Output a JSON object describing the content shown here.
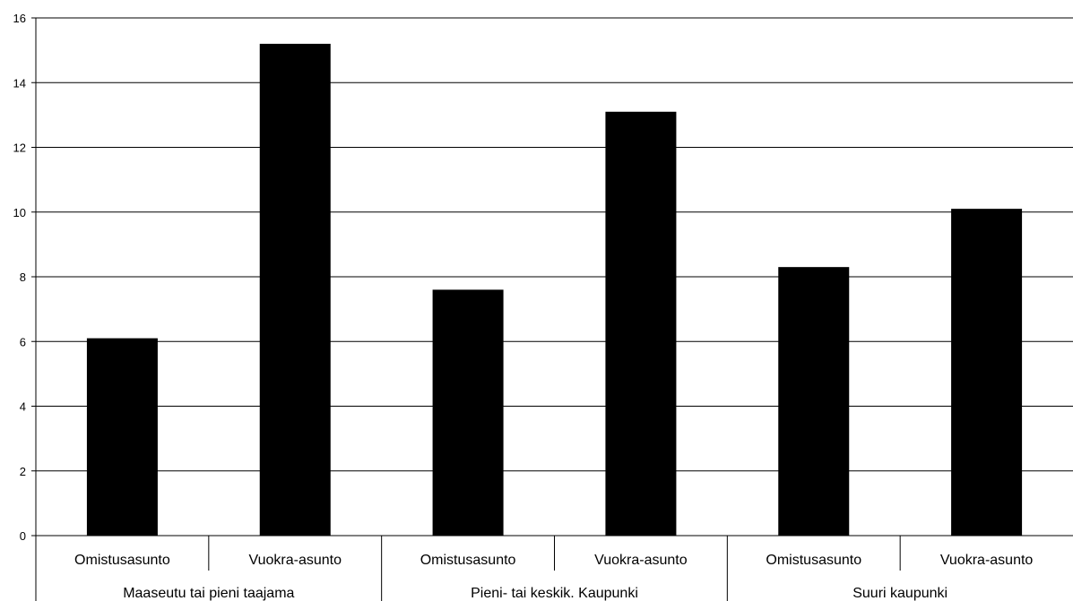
{
  "chart_data": {
    "type": "bar",
    "title": "",
    "xlabel": "",
    "ylabel": "",
    "ylim": [
      0,
      16
    ],
    "yticks": [
      0,
      2,
      4,
      6,
      8,
      10,
      12,
      14,
      16
    ],
    "grid": true,
    "legend": "none",
    "bar_color": "#000000",
    "categories": [
      "Omistusasunto",
      "Vuokra-asunto",
      "Omistusasunto",
      "Vuokra-asunto",
      "Omistusasunto",
      "Vuokra-asunto"
    ],
    "groups": [
      "Maaseutu tai pieni taajama",
      "Pieni- tai keskik. Kaupunki",
      "Suuri kaupunki"
    ],
    "values": [
      6.1,
      15.2,
      7.6,
      13.1,
      8.3,
      10.1
    ]
  }
}
